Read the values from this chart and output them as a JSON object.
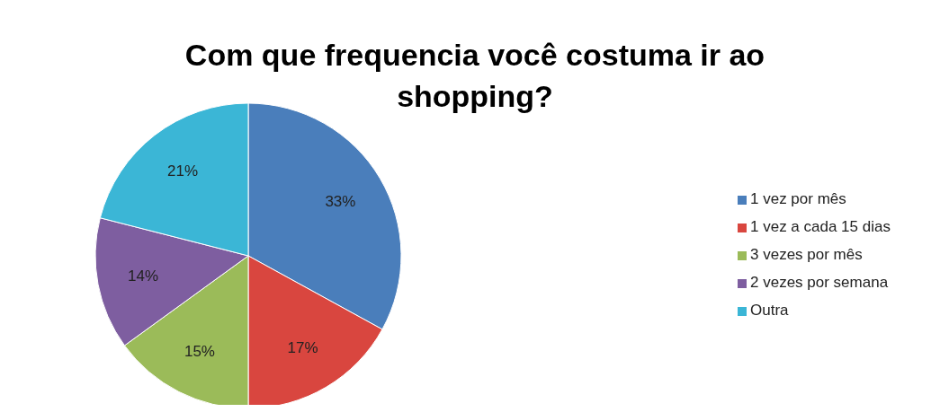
{
  "chart_data": {
    "type": "pie",
    "title": "Com que frequencia você costuma ir ao shopping?",
    "categories": [
      "1 vez por mês",
      "1 vez a cada 15 dias",
      "3 vezes por mês",
      "2 vezes por semana",
      "Outra"
    ],
    "values": [
      33,
      17,
      15,
      14,
      21
    ],
    "value_labels": [
      "33%",
      "17%",
      "15%",
      "14%",
      "21%"
    ],
    "colors": [
      "#4a7ebb",
      "#d9463f",
      "#9bbb59",
      "#7e5ea0",
      "#3bb6d6"
    ],
    "legend": "right"
  }
}
